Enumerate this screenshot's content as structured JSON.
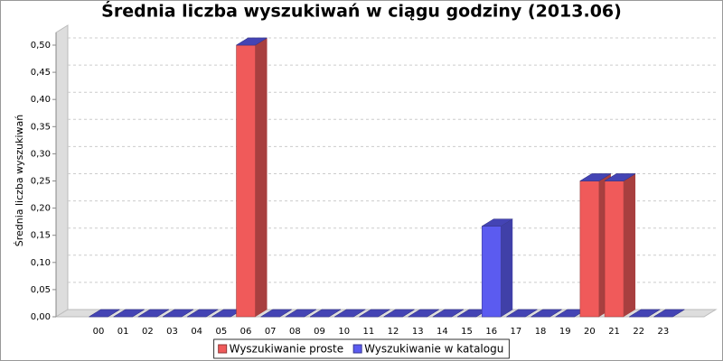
{
  "chart_data": {
    "type": "bar3d_stacked",
    "title": "Średnia liczba wyszukiwań w ciągu godziny (2013.06)",
    "y_label": "Średnia liczba wyszukiwań",
    "categories": [
      "00",
      "01",
      "02",
      "03",
      "04",
      "05",
      "06",
      "07",
      "08",
      "09",
      "10",
      "11",
      "12",
      "13",
      "14",
      "15",
      "16",
      "17",
      "18",
      "19",
      "20",
      "21",
      "22",
      "23"
    ],
    "series": [
      {
        "name": "Wyszukiwanie proste",
        "color": "#f05a5a",
        "values": [
          0,
          0,
          0,
          0,
          0,
          0,
          0.5,
          0,
          0,
          0,
          0,
          0,
          0,
          0,
          0,
          0,
          0,
          0,
          0,
          0,
          0.25,
          0.25,
          0,
          0
        ]
      },
      {
        "name": "Wyszukiwanie w katalogu",
        "color": "#5b5bf0",
        "values": [
          0,
          0,
          0,
          0,
          0,
          0,
          0,
          0,
          0,
          0,
          0,
          0,
          0,
          0,
          0,
          0,
          0.1667,
          0,
          0,
          0,
          0,
          0,
          0,
          0
        ]
      }
    ],
    "ylim": [
      0,
      0.54
    ],
    "yticks": [
      {
        "value": 0,
        "label": "0,00"
      },
      {
        "value": 0.05,
        "label": "0,05"
      },
      {
        "value": 0.1,
        "label": "0,10"
      },
      {
        "value": 0.15,
        "label": "0,15"
      },
      {
        "value": 0.2,
        "label": "0,20"
      },
      {
        "value": 0.25,
        "label": "0,25"
      },
      {
        "value": 0.3,
        "label": "0,30"
      },
      {
        "value": 0.35,
        "label": "0,35"
      },
      {
        "value": 0.4,
        "label": "0,40"
      },
      {
        "value": 0.45,
        "label": "0,45"
      },
      {
        "value": 0.5,
        "label": "0,50"
      }
    ],
    "grid": true
  }
}
